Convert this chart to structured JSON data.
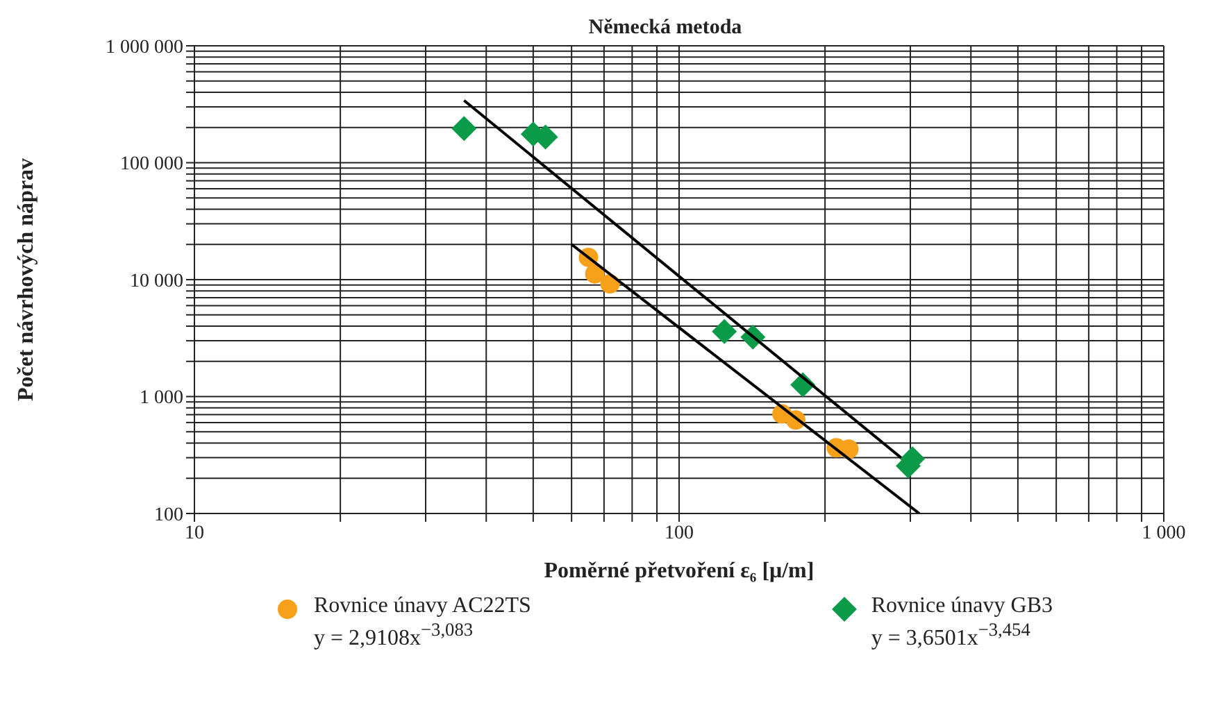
{
  "chart_data": {
    "type": "scatter",
    "title": "Německá metoda",
    "xlabel": "Poměrné přetvoření ε₆ [μ/m]",
    "ylabel": "Počet návrhových náprav",
    "log": "xy",
    "grid": true,
    "legend": "bottom",
    "xlim": [
      10,
      1000
    ],
    "xticks": [
      {
        "value": 10,
        "label": "10"
      },
      {
        "value": 20,
        "label": null
      },
      {
        "value": 30,
        "label": null
      },
      {
        "value": 40,
        "label": null
      },
      {
        "value": 50,
        "label": null
      },
      {
        "value": 60,
        "label": null
      },
      {
        "value": 70,
        "label": null
      },
      {
        "value": 80,
        "label": null
      },
      {
        "value": 90,
        "label": null
      },
      {
        "value": 100,
        "label": "100"
      },
      {
        "value": 200,
        "label": null
      },
      {
        "value": 300,
        "label": null
      },
      {
        "value": 400,
        "label": null
      },
      {
        "value": 500,
        "label": null
      },
      {
        "value": 600,
        "label": null
      },
      {
        "value": 700,
        "label": null
      },
      {
        "value": 800,
        "label": null
      },
      {
        "value": 900,
        "label": null
      },
      {
        "value": 1000,
        "label": "1 000"
      }
    ],
    "ylim": [
      100,
      1000000
    ],
    "yticks": [
      {
        "value": 100,
        "label": "100"
      },
      {
        "value": 200,
        "label": null
      },
      {
        "value": 300,
        "label": null
      },
      {
        "value": 400,
        "label": null
      },
      {
        "value": 500,
        "label": null
      },
      {
        "value": 600,
        "label": null
      },
      {
        "value": 700,
        "label": null
      },
      {
        "value": 800,
        "label": null
      },
      {
        "value": 900,
        "label": null
      },
      {
        "value": 1000,
        "label": "1 000"
      },
      {
        "value": 2000,
        "label": null
      },
      {
        "value": 3000,
        "label": null
      },
      {
        "value": 4000,
        "label": null
      },
      {
        "value": 5000,
        "label": null
      },
      {
        "value": 6000,
        "label": null
      },
      {
        "value": 7000,
        "label": null
      },
      {
        "value": 8000,
        "label": null
      },
      {
        "value": 9000,
        "label": null
      },
      {
        "value": 10000,
        "label": "10 000"
      },
      {
        "value": 20000,
        "label": null
      },
      {
        "value": 30000,
        "label": null
      },
      {
        "value": 40000,
        "label": null
      },
      {
        "value": 50000,
        "label": null
      },
      {
        "value": 60000,
        "label": null
      },
      {
        "value": 70000,
        "label": null
      },
      {
        "value": 80000,
        "label": null
      },
      {
        "value": 90000,
        "label": null
      },
      {
        "value": 100000,
        "label": "100 000"
      },
      {
        "value": 200000,
        "label": null
      },
      {
        "value": 300000,
        "label": null
      },
      {
        "value": 400000,
        "label": null
      },
      {
        "value": 500000,
        "label": null
      },
      {
        "value": 600000,
        "label": null
      },
      {
        "value": 700000,
        "label": null
      },
      {
        "value": 800000,
        "label": null
      },
      {
        "value": 900000,
        "label": null
      },
      {
        "value": 1000000,
        "label": "1 000 000"
      }
    ],
    "series": [
      {
        "name": "Rovnice únavy AC22TS",
        "marker": "circle",
        "color": "#f7a11a",
        "x": [
          65,
          67,
          72,
          163,
          174,
          211,
          224
        ],
        "values": [
          15500,
          11200,
          9200,
          710,
          630,
          365,
          355
        ]
      },
      {
        "name": "Rovnice únavy GB3",
        "marker": "diamond",
        "color": "#0a9a48",
        "x": [
          36,
          50,
          53,
          124,
          142,
          180,
          297,
          303
        ],
        "values": [
          196000,
          176000,
          166000,
          3600,
          3230,
          1260,
          255,
          293
        ]
      },
      {
        "type": "line",
        "marker": "none",
        "color": "#000000",
        "x": [
          60,
          313
        ],
        "values": [
          20000,
          100
        ]
      },
      {
        "type": "line",
        "marker": "none",
        "color": "#000000",
        "x": [
          36,
          287
        ],
        "values": [
          341000,
          300
        ]
      }
    ],
    "annotations": [
      "y = 2,9108x$^{−3,083}$",
      "y = 3,6501x$^{−3,454}$"
    ]
  }
}
